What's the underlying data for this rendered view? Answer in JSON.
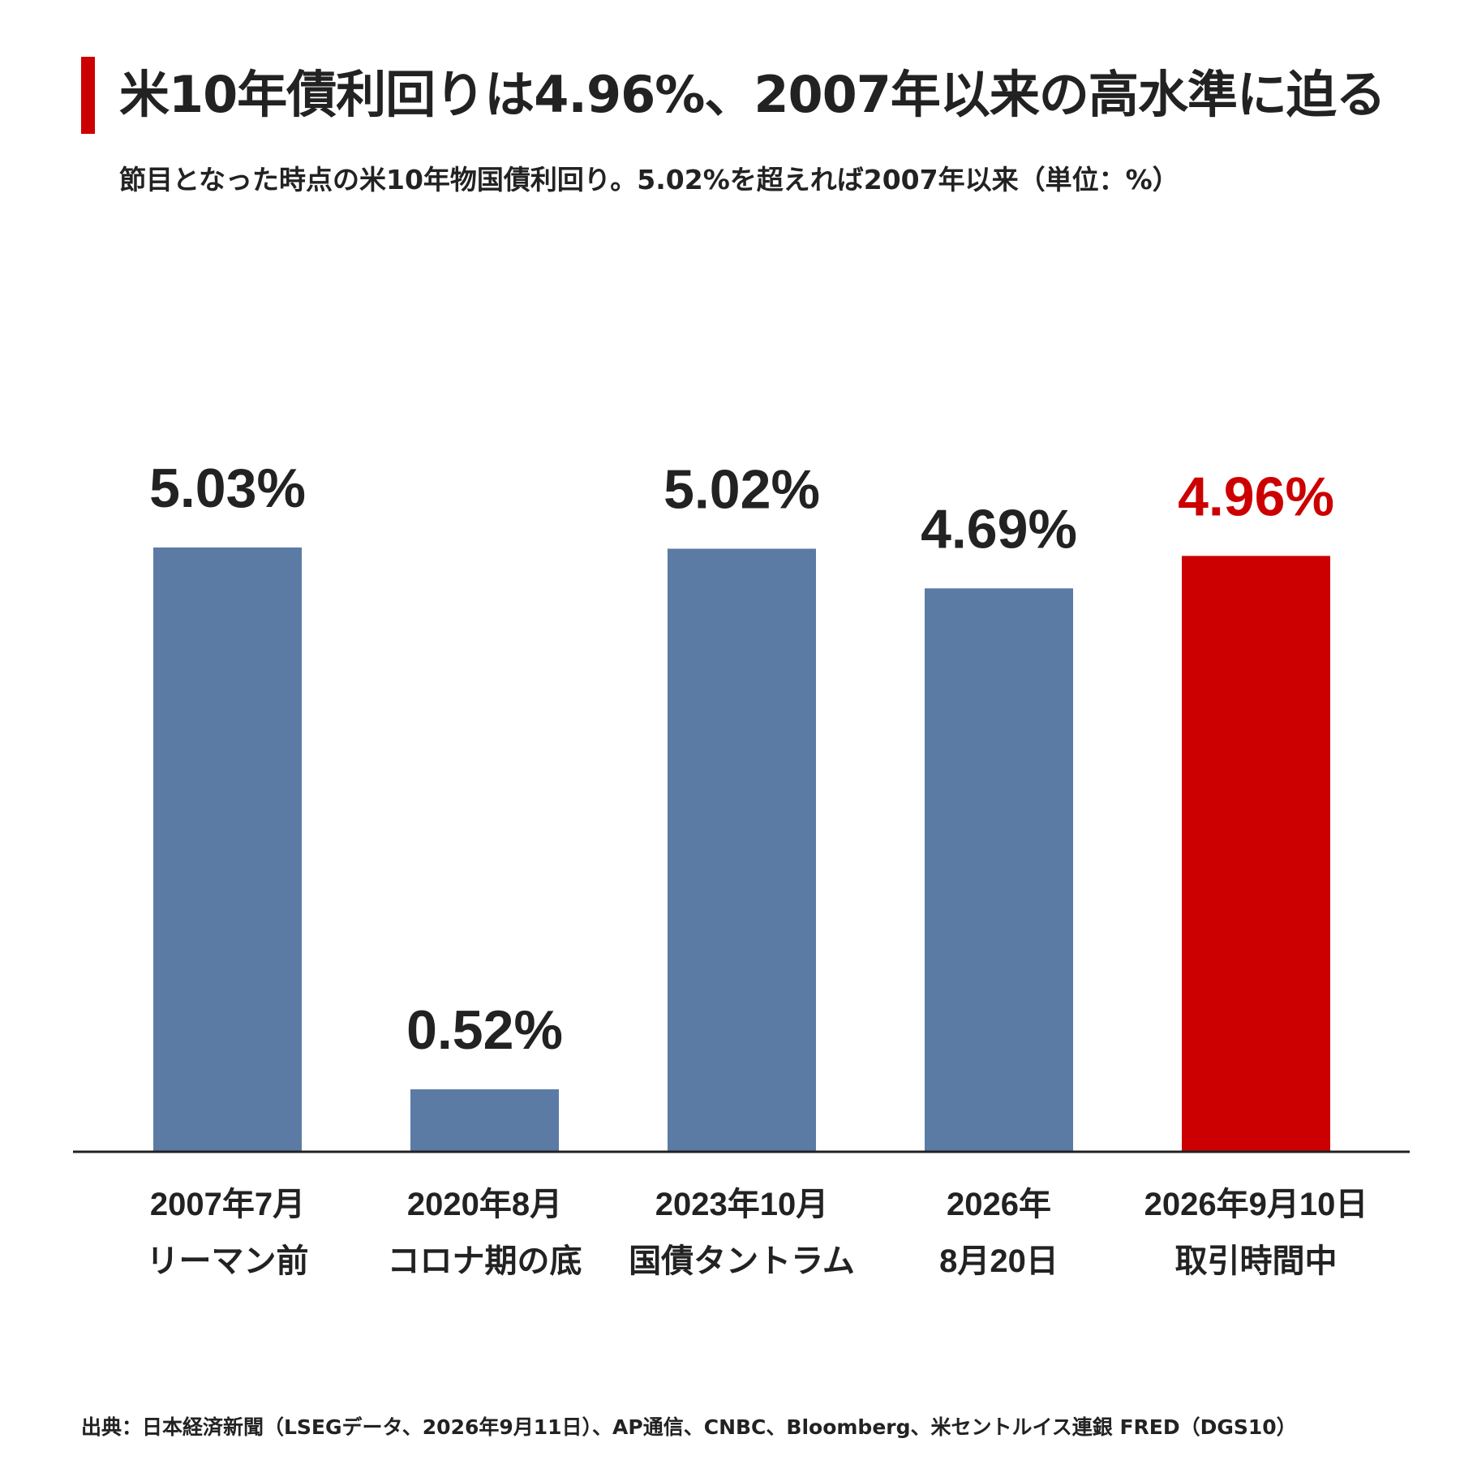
{
  "title": "米10年債利回りは4.96%、2007年以来の高水準に迫る",
  "subtitle": "節目となった時点の米10年物国債利回り。5.02%を超えれば2007年以来（単位：%）",
  "source": "出典：日本経済新聞（LSEGデータ、2026年9月11日）、AP通信、CNBC、Bloomberg、米セントルイス連銀 FRED（DGS10）",
  "colors": {
    "accent": "#cc0000",
    "bar": "#5b7ba5",
    "highlight_bar": "#cc0000",
    "text": "#222222",
    "highlight_text": "#cc0000"
  },
  "chart_data": {
    "type": "bar",
    "unit": "%",
    "categories": [
      [
        "2007年7月",
        "リーマン前"
      ],
      [
        "2020年8月",
        "コロナ期の底"
      ],
      [
        "2023年10月",
        "国債タントラム"
      ],
      [
        "2026年",
        "8月20日"
      ],
      [
        "2026年9月10日",
        "取引時間中"
      ]
    ],
    "values": [
      5.03,
      0.52,
      5.02,
      4.69,
      4.96
    ],
    "data_labels": [
      "5.03%",
      "0.52%",
      "5.02%",
      "4.69%",
      "4.96%"
    ],
    "highlight_index": 4,
    "ylim": [
      0,
      5.03
    ],
    "grid": false,
    "legend": "none",
    "title": "米10年債利回りは4.96%、2007年以来の高水準に迫る",
    "xlabel": "",
    "ylabel": ""
  }
}
